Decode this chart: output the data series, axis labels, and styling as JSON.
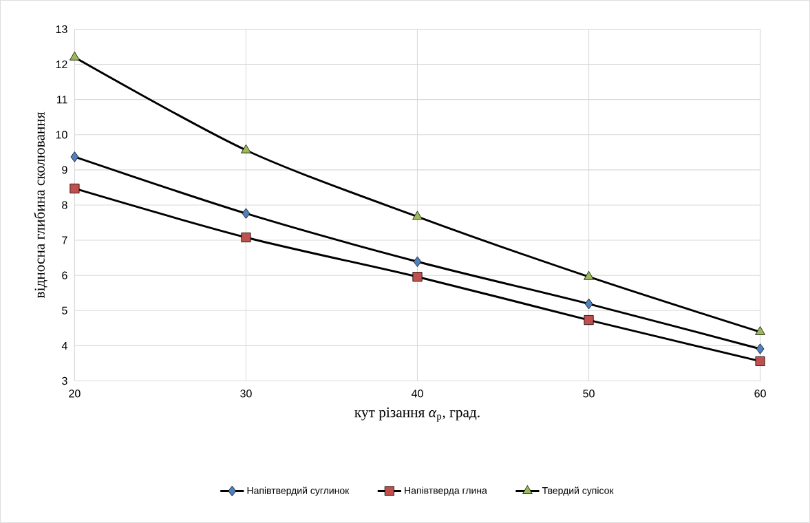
{
  "chart_data": {
    "type": "line",
    "xlabel": "кут різання *α*$_{p}$, град.",
    "ylabel": "відносна глибина сколювання",
    "x": [
      20,
      30,
      40,
      50,
      60
    ],
    "series": [
      {
        "name": "Напівтвердий суглинок",
        "color": "#4f81bd",
        "marker": "diamond",
        "values": [
          9.37,
          7.76,
          6.39,
          5.19,
          3.91
        ]
      },
      {
        "name": "Напівтверда глина",
        "color": "#c0504d",
        "marker": "square",
        "values": [
          8.47,
          7.08,
          5.96,
          4.73,
          3.56
        ]
      },
      {
        "name": "Твердий супісок",
        "color": "#9bbb59",
        "marker": "triangle",
        "values": [
          12.2,
          9.56,
          7.67,
          5.96,
          4.39
        ]
      }
    ],
    "xlim": [
      20,
      60
    ],
    "xticks": [
      20,
      30,
      40,
      50,
      60
    ],
    "ylim": [
      3,
      13
    ],
    "yticks": [
      3,
      4,
      5,
      6,
      7,
      8,
      9,
      10,
      11,
      12,
      13
    ],
    "grid": true,
    "legend": "bottom",
    "line_style": "solid"
  }
}
